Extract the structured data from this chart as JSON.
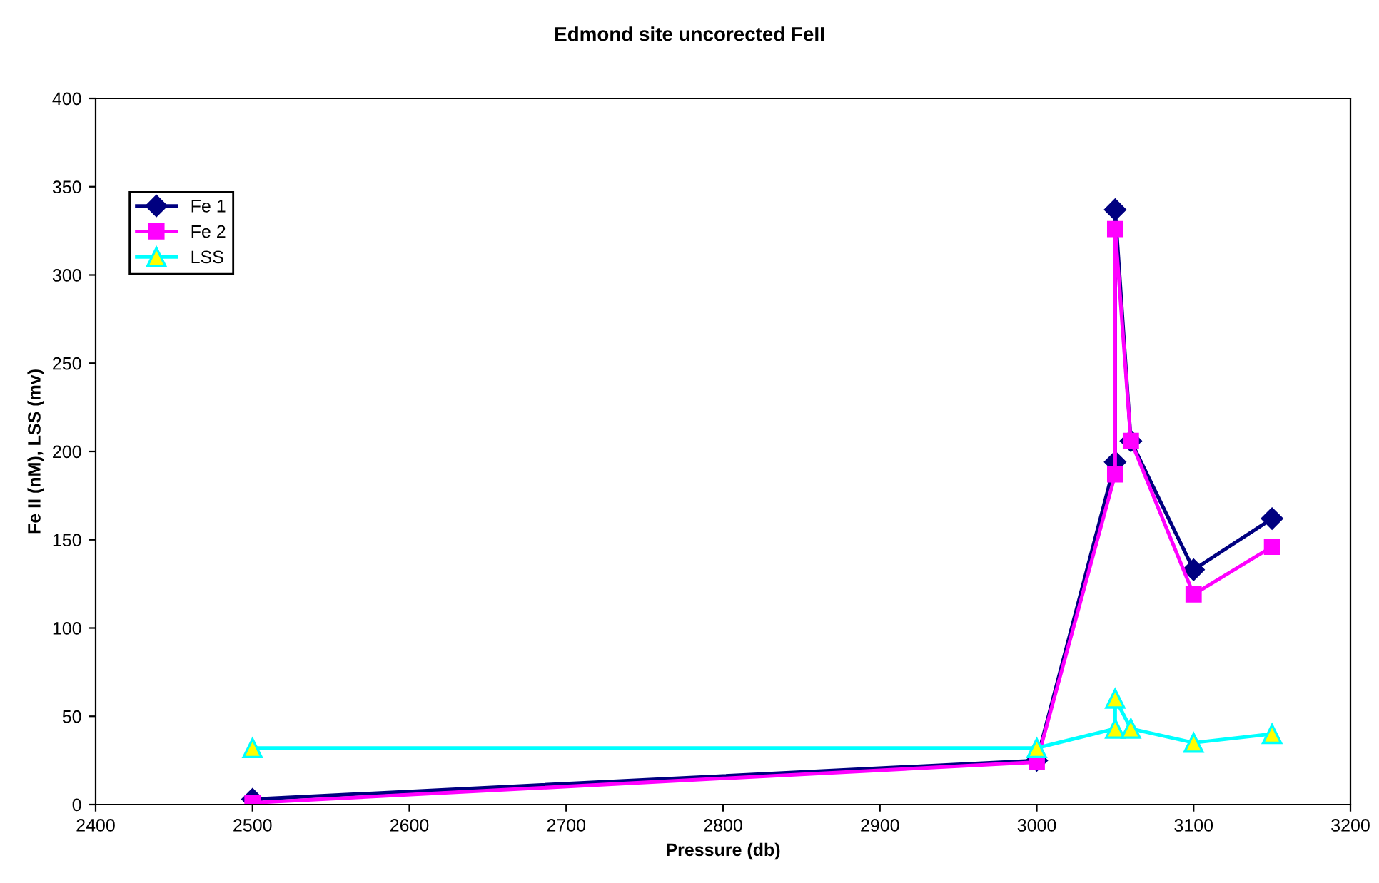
{
  "chart_data": {
    "type": "line",
    "title": "Edmond site uncorected FeII",
    "xlabel": "Pressure (db)",
    "ylabel": "Fe II (nM), LSS (mv)",
    "xlim": [
      2400,
      3200
    ],
    "xticks": [
      2400,
      2500,
      2600,
      2700,
      2800,
      2900,
      3000,
      3100,
      3200
    ],
    "ylim": [
      0,
      400
    ],
    "yticks": [
      0,
      50,
      100,
      150,
      200,
      250,
      300,
      350,
      400
    ],
    "grid": false,
    "legend": "top left",
    "series": [
      {
        "name": "Fe 1",
        "color": "#000080",
        "marker": "diamond",
        "x": [
          2500,
          3000,
          3050,
          3050,
          3060,
          3100,
          3150
        ],
        "values": [
          3,
          25,
          194,
          337,
          206,
          133,
          162
        ]
      },
      {
        "name": "Fe 2",
        "color": "#ff00ff",
        "marker": "square",
        "x": [
          2500,
          3000,
          3050,
          3050,
          3060,
          3100,
          3150
        ],
        "values": [
          1,
          24,
          187,
          326,
          206,
          119,
          146
        ]
      },
      {
        "name": "LSS",
        "color": "#00ffff",
        "marker": "triangle",
        "x": [
          2500,
          3000,
          3050,
          3050,
          3060,
          3100,
          3150
        ],
        "values": [
          32,
          32,
          43,
          60,
          43,
          35,
          40
        ]
      }
    ]
  }
}
